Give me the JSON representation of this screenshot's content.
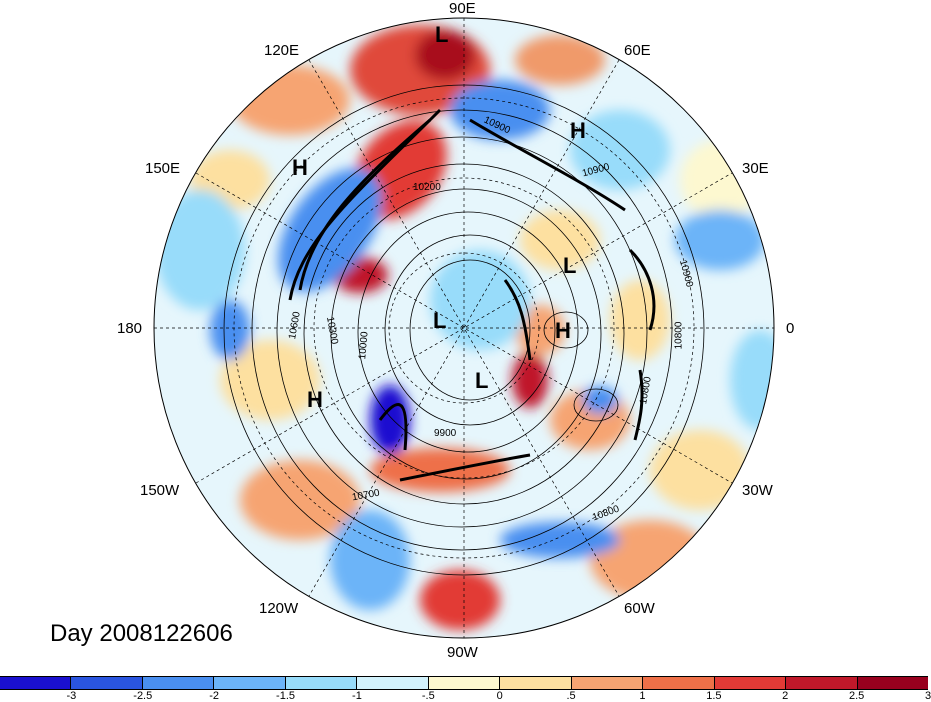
{
  "longitude_labels": {
    "lon_90e": "90E",
    "lon_60e": "60E",
    "lon_30e": "30E",
    "lon_0": "0",
    "lon_30w": "30W",
    "lon_60w": "60W",
    "lon_90w": "90W",
    "lon_120w": "120W",
    "lon_150w": "150W",
    "lon_180": "180",
    "lon_150e": "150E",
    "lon_120e": "120E"
  },
  "pressure_centers": {
    "h1": "H",
    "h2": "H",
    "h3": "H",
    "h4": "H",
    "l1": "L",
    "l2": "L",
    "l3": "L",
    "l4": "L"
  },
  "contour_labels": {
    "c1": "10900",
    "c2": "10900",
    "c3": "10200",
    "c4": "10600",
    "c5": "10300",
    "c6": "10000",
    "c7": "10900",
    "c8": "10800",
    "c9": "9900",
    "c10": "10700",
    "c11": "10800",
    "c12": "10800"
  },
  "timestamp": "Day 2008122606",
  "colorbar": {
    "colors": [
      "#1a10d0",
      "#2a55e0",
      "#4a8ff0",
      "#6cb4f8",
      "#98dcfa",
      "#d2f2fc",
      "#fdf8d0",
      "#fde0a0",
      "#f6a472",
      "#ee7048",
      "#e23a36",
      "#c0182a",
      "#98001e"
    ],
    "ticks": [
      "-3",
      "-2.5",
      "-2",
      "-1.5",
      "-1",
      "-.5",
      "0",
      ".5",
      "1",
      "1.5",
      "2",
      "2.5",
      "3"
    ]
  }
}
